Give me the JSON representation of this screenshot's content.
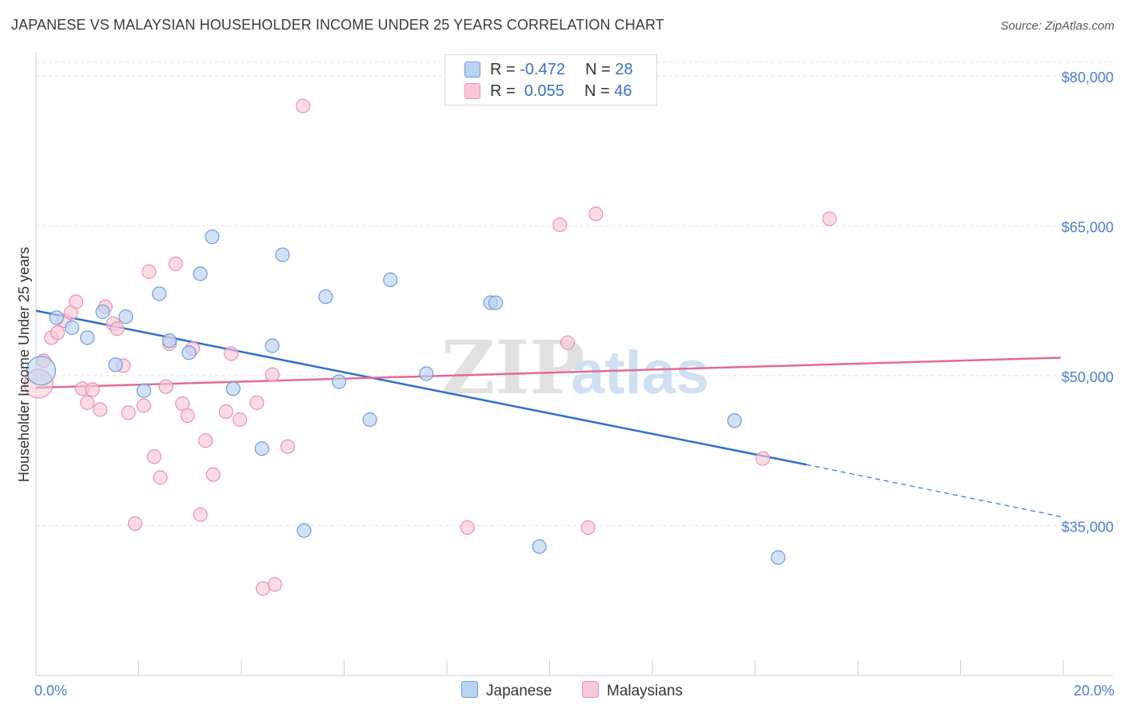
{
  "title": "JAPANESE VS MALAYSIAN HOUSEHOLDER INCOME UNDER 25 YEARS CORRELATION CHART",
  "source": "Source: ZipAtlas.com",
  "watermark": {
    "zip": "ZIP",
    "atlas": "atlas"
  },
  "legend": {
    "japanese": {
      "r_label": "R =",
      "r_value": "-0.472",
      "n_label": "N =",
      "n_value": "28"
    },
    "malaysian": {
      "r_label": "R =",
      "r_value": " 0.055",
      "n_label": "N =",
      "n_value": "46"
    }
  },
  "colors": {
    "japanese_fill": "#b9d3f2",
    "japanese_stroke": "#6f9ad6",
    "japanese_line": "#2f6fce",
    "malaysian_fill": "#f8c8d6",
    "malaysian_stroke": "#e991ad",
    "malaysian_line": "#e06b93",
    "tick_label": "#4a7fcf",
    "grid": "#e2e2e2"
  },
  "chart_data": {
    "type": "scatter",
    "xlabel": "",
    "ylabel": "Householder Income Under 25 years",
    "xlim": [
      0,
      20
    ],
    "ylim": [
      20000,
      82000
    ],
    "x_tick_labels": [
      "0.0%",
      "20.0%"
    ],
    "y_ticks": [
      35000,
      50000,
      65000,
      80000
    ],
    "y_tick_labels": [
      "$35,000",
      "$50,000",
      "$65,000",
      "$80,000"
    ],
    "grid": true,
    "legend_position": "top-center",
    "series": [
      {
        "name": "Japanese",
        "points": [
          {
            "x": 0.1,
            "y": 50500,
            "big": true
          },
          {
            "x": 0.4,
            "y": 55800
          },
          {
            "x": 0.7,
            "y": 54800
          },
          {
            "x": 1.0,
            "y": 53800
          },
          {
            "x": 1.3,
            "y": 56400
          },
          {
            "x": 1.55,
            "y": 51100
          },
          {
            "x": 1.75,
            "y": 55900
          },
          {
            "x": 2.1,
            "y": 48500
          },
          {
            "x": 2.4,
            "y": 58200
          },
          {
            "x": 2.6,
            "y": 53500
          },
          {
            "x": 2.98,
            "y": 52300
          },
          {
            "x": 3.2,
            "y": 60200
          },
          {
            "x": 3.43,
            "y": 63900
          },
          {
            "x": 3.84,
            "y": 48700
          },
          {
            "x": 4.4,
            "y": 42700
          },
          {
            "x": 4.6,
            "y": 53000
          },
          {
            "x": 4.8,
            "y": 62100
          },
          {
            "x": 5.22,
            "y": 34500
          },
          {
            "x": 5.64,
            "y": 57900
          },
          {
            "x": 5.9,
            "y": 49400
          },
          {
            "x": 6.5,
            "y": 45600
          },
          {
            "x": 6.9,
            "y": 59600
          },
          {
            "x": 7.6,
            "y": 50200
          },
          {
            "x": 8.85,
            "y": 57300
          },
          {
            "x": 8.95,
            "y": 57300
          },
          {
            "x": 9.8,
            "y": 32900
          },
          {
            "x": 13.6,
            "y": 45500
          },
          {
            "x": 14.45,
            "y": 31800
          }
        ],
        "trend": {
          "x": [
            0.0,
            15.0
          ],
          "y": [
            56500,
            41100
          ]
        },
        "trend_dashed": {
          "x": [
            15.0,
            19.95
          ],
          "y": [
            41100,
            35900
          ]
        }
      },
      {
        "name": "Malaysians",
        "points": [
          {
            "x": 0.05,
            "y": 49200,
            "big": true
          },
          {
            "x": 0.15,
            "y": 51500
          },
          {
            "x": 0.3,
            "y": 53800
          },
          {
            "x": 0.42,
            "y": 54300
          },
          {
            "x": 0.55,
            "y": 55500
          },
          {
            "x": 0.68,
            "y": 56300
          },
          {
            "x": 0.78,
            "y": 57400
          },
          {
            "x": 0.9,
            "y": 48700
          },
          {
            "x": 1.0,
            "y": 47300
          },
          {
            "x": 1.1,
            "y": 48600
          },
          {
            "x": 1.25,
            "y": 46600
          },
          {
            "x": 1.35,
            "y": 56900
          },
          {
            "x": 1.5,
            "y": 55200
          },
          {
            "x": 1.58,
            "y": 54700
          },
          {
            "x": 1.7,
            "y": 51000
          },
          {
            "x": 1.8,
            "y": 46300
          },
          {
            "x": 1.93,
            "y": 35200
          },
          {
            "x": 2.1,
            "y": 47000
          },
          {
            "x": 2.2,
            "y": 60400
          },
          {
            "x": 2.3,
            "y": 41900
          },
          {
            "x": 2.42,
            "y": 39800
          },
          {
            "x": 2.53,
            "y": 48900
          },
          {
            "x": 2.6,
            "y": 53200
          },
          {
            "x": 2.72,
            "y": 61200
          },
          {
            "x": 2.85,
            "y": 47200
          },
          {
            "x": 2.95,
            "y": 46000
          },
          {
            "x": 3.05,
            "y": 52700
          },
          {
            "x": 3.2,
            "y": 36100
          },
          {
            "x": 3.3,
            "y": 43500
          },
          {
            "x": 3.45,
            "y": 40100
          },
          {
            "x": 3.7,
            "y": 46400
          },
          {
            "x": 3.8,
            "y": 52200
          },
          {
            "x": 3.97,
            "y": 45600
          },
          {
            "x": 4.3,
            "y": 47300
          },
          {
            "x": 4.42,
            "y": 28700
          },
          {
            "x": 4.6,
            "y": 50100
          },
          {
            "x": 4.65,
            "y": 29100
          },
          {
            "x": 4.9,
            "y": 42900
          },
          {
            "x": 5.2,
            "y": 77000
          },
          {
            "x": 8.4,
            "y": 34800
          },
          {
            "x": 10.2,
            "y": 65100
          },
          {
            "x": 10.35,
            "y": 53300
          },
          {
            "x": 10.75,
            "y": 34800
          },
          {
            "x": 10.9,
            "y": 66200
          },
          {
            "x": 14.15,
            "y": 41700
          },
          {
            "x": 15.45,
            "y": 65700
          }
        ],
        "trend": {
          "x": [
            0.0,
            19.95
          ],
          "y": [
            48800,
            51800
          ]
        }
      }
    ]
  }
}
